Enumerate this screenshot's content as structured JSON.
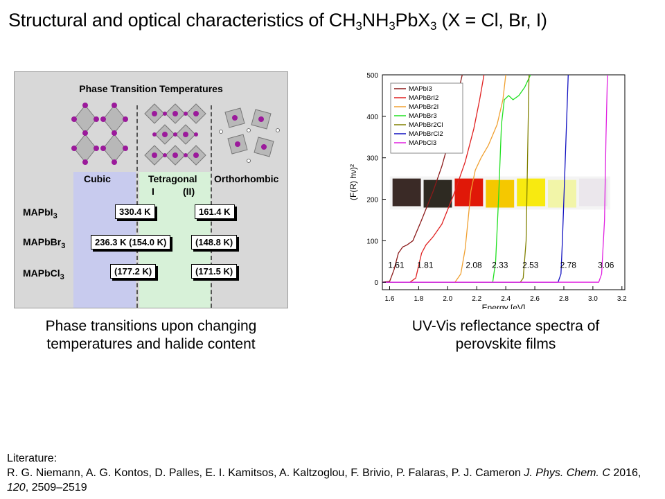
{
  "slide": {
    "title_main": "Structural and optical characteristics of CH",
    "title_sub1": "3",
    "title_mid1": "NH",
    "title_sub2": "3",
    "title_mid2": "PbX",
    "title_sub3": "3",
    "title_end": " (X = Cl, Br, I)",
    "left_caption_line1": "Phase transitions upon changing",
    "left_caption_line2": "temperatures and halide content",
    "right_caption_line1": "UV-Vis reflectance spectra of",
    "right_caption_line2": "perovskite films",
    "literature_label": "Literature:",
    "literature_authors": "R. G. Niemann, A. G. Kontos, D. Palles, E. I. Kamitsos, A. Kaltzoglou, F. Brivio, P. Falaras, P. J. Cameron ",
    "literature_journal": "J. Phys. Chem. C",
    "literature_year": " 2016, ",
    "literature_volume": "120",
    "literature_pages": ", 2509–2519"
  },
  "phase_figure": {
    "title": "Phase Transition Temperatures",
    "phases": [
      "Cubic",
      "Tetragonal",
      "I",
      "(II)",
      "Orthorhombic"
    ],
    "rows": [
      {
        "base": "MAPbI",
        "sub": "3",
        "t1": "330.4 K",
        "t2": "161.4 K"
      },
      {
        "base": "MAPbBr",
        "sub": "3",
        "t1": "236.3 K (154.0 K)",
        "t2": "(148.8 K)"
      },
      {
        "base": "MAPbCl",
        "sub": "3",
        "t1": "(177.2 K)",
        "t2": "(171.5 K)"
      }
    ],
    "colors": {
      "cubic": "#c8cbee",
      "tetragonal": "#d7f1d8",
      "panel": "#d8d8d8",
      "atom": "#9b1a9b"
    }
  },
  "chart_data": {
    "type": "line",
    "xlabel": "Energy [eV]",
    "ylabel": "(F(R) hν)²",
    "xlim": [
      1.55,
      3.22
    ],
    "ylim": [
      -18,
      500
    ],
    "xticks": [
      1.6,
      1.8,
      2.0,
      2.2,
      2.4,
      2.6,
      2.8,
      3.0,
      3.2
    ],
    "xtick_labels": [
      "1.6",
      "1.8",
      "2.0",
      "2.2",
      "2.4",
      "2.6",
      "2.8",
      "3.0",
      "3.2"
    ],
    "yticks": [
      0,
      100,
      200,
      300,
      400,
      500
    ],
    "ytick_labels": [
      "0",
      "100",
      "200",
      "300",
      "400",
      "500"
    ],
    "legend_position": "top-left",
    "series": [
      {
        "name": "MAPbI3",
        "color": "#8b1a1a",
        "points": [
          [
            1.55,
            0
          ],
          [
            1.6,
            2
          ],
          [
            1.63,
            30
          ],
          [
            1.66,
            70
          ],
          [
            1.69,
            85
          ],
          [
            1.72,
            90
          ],
          [
            1.76,
            100
          ],
          [
            1.82,
            150
          ],
          [
            1.9,
            220
          ],
          [
            1.96,
            280
          ],
          [
            2.0,
            330
          ],
          [
            2.04,
            400
          ],
          [
            2.08,
            470
          ],
          [
            2.1,
            500
          ]
        ]
      },
      {
        "name": "MAPbBrI2",
        "color": "#e02020",
        "points": [
          [
            1.55,
            0
          ],
          [
            1.74,
            0
          ],
          [
            1.78,
            10
          ],
          [
            1.8,
            40
          ],
          [
            1.82,
            70
          ],
          [
            1.85,
            90
          ],
          [
            1.9,
            110
          ],
          [
            1.96,
            140
          ],
          [
            2.04,
            210
          ],
          [
            2.12,
            290
          ],
          [
            2.18,
            370
          ],
          [
            2.22,
            440
          ],
          [
            2.25,
            500
          ]
        ]
      },
      {
        "name": "MAPbBr2I",
        "color": "#f0a030",
        "points": [
          [
            1.55,
            0
          ],
          [
            2.05,
            0
          ],
          [
            2.09,
            20
          ],
          [
            2.12,
            80
          ],
          [
            2.14,
            150
          ],
          [
            2.16,
            220
          ],
          [
            2.19,
            270
          ],
          [
            2.23,
            300
          ],
          [
            2.28,
            330
          ],
          [
            2.34,
            380
          ],
          [
            2.38,
            440
          ],
          [
            2.4,
            500
          ]
        ]
      },
      {
        "name": "MAPbBr3",
        "color": "#20e020",
        "points": [
          [
            1.55,
            0
          ],
          [
            2.31,
            0
          ],
          [
            2.33,
            50
          ],
          [
            2.35,
            200
          ],
          [
            2.37,
            380
          ],
          [
            2.39,
            440
          ],
          [
            2.42,
            450
          ],
          [
            2.45,
            440
          ],
          [
            2.49,
            450
          ],
          [
            2.53,
            470
          ],
          [
            2.57,
            500
          ]
        ]
      },
      {
        "name": "MAPbBr2Cl",
        "color": "#808000",
        "points": [
          [
            1.55,
            0
          ],
          [
            2.5,
            0
          ],
          [
            2.52,
            10
          ],
          [
            2.54,
            100
          ],
          [
            2.55,
            300
          ],
          [
            2.56,
            500
          ]
        ]
      },
      {
        "name": "MAPbBrCl2",
        "color": "#1010c0",
        "points": [
          [
            1.55,
            0
          ],
          [
            2.76,
            0
          ],
          [
            2.78,
            20
          ],
          [
            2.79,
            100
          ],
          [
            2.81,
            300
          ],
          [
            2.83,
            500
          ]
        ]
      },
      {
        "name": "MAPbCl3",
        "color": "#e020e0",
        "points": [
          [
            1.55,
            0
          ],
          [
            3.04,
            0
          ],
          [
            3.06,
            20
          ],
          [
            3.08,
            150
          ],
          [
            3.09,
            350
          ],
          [
            3.1,
            500
          ]
        ]
      }
    ],
    "annotations": [
      {
        "text": "1.61",
        "x": 1.645,
        "y": 35
      },
      {
        "text": "1.81",
        "x": 1.845,
        "y": 35
      },
      {
        "text": "2.08",
        "x": 2.18,
        "y": 35
      },
      {
        "text": "2.33",
        "x": 2.36,
        "y": 35
      },
      {
        "text": "2.53",
        "x": 2.57,
        "y": 35
      },
      {
        "text": "2.78",
        "x": 2.83,
        "y": 35
      },
      {
        "text": "3.06",
        "x": 3.09,
        "y": 35
      }
    ],
    "film_swatches": [
      "#3a2a26",
      "#2e2a22",
      "#e01808",
      "#f5c800",
      "#f8ea10",
      "#f2f5a8",
      "#ebe7ec"
    ]
  }
}
